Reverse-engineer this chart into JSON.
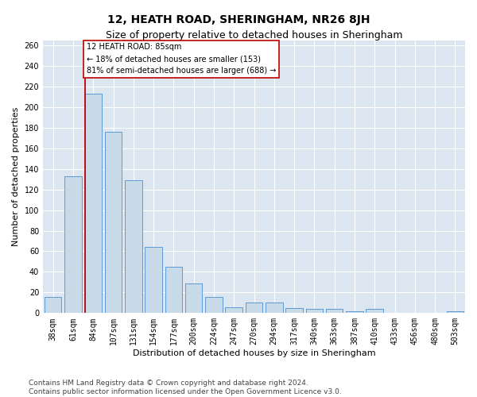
{
  "title": "12, HEATH ROAD, SHERINGHAM, NR26 8JH",
  "subtitle": "Size of property relative to detached houses in Sheringham",
  "xlabel": "Distribution of detached houses by size in Sheringham",
  "ylabel": "Number of detached properties",
  "bar_labels": [
    "38sqm",
    "61sqm",
    "84sqm",
    "107sqm",
    "131sqm",
    "154sqm",
    "177sqm",
    "200sqm",
    "224sqm",
    "247sqm",
    "270sqm",
    "294sqm",
    "317sqm",
    "340sqm",
    "363sqm",
    "387sqm",
    "410sqm",
    "433sqm",
    "456sqm",
    "480sqm",
    "503sqm"
  ],
  "bar_values": [
    16,
    133,
    213,
    176,
    129,
    64,
    45,
    29,
    16,
    6,
    10,
    10,
    5,
    4,
    4,
    2,
    4,
    0,
    0,
    0,
    2
  ],
  "bar_color": "#c8d9e8",
  "bar_edge_color": "#5b9bd5",
  "vline_bar_index": 2,
  "vline_color": "#c00000",
  "annotation_text": "12 HEATH ROAD: 85sqm\n← 18% of detached houses are smaller (153)\n81% of semi-detached houses are larger (688) →",
  "annotation_box_facecolor": "#ffffff",
  "annotation_box_edgecolor": "#c00000",
  "ylim": [
    0,
    265
  ],
  "yticks": [
    0,
    20,
    40,
    60,
    80,
    100,
    120,
    140,
    160,
    180,
    200,
    220,
    240,
    260
  ],
  "grid_color": "#ffffff",
  "bg_color": "#dce6f0",
  "footer_line1": "Contains HM Land Registry data © Crown copyright and database right 2024.",
  "footer_line2": "Contains public sector information licensed under the Open Government Licence v3.0.",
  "title_fontsize": 10,
  "subtitle_fontsize": 9,
  "ylabel_fontsize": 8,
  "xlabel_fontsize": 8,
  "tick_fontsize": 7,
  "annotation_fontsize": 7,
  "footer_fontsize": 6.5
}
